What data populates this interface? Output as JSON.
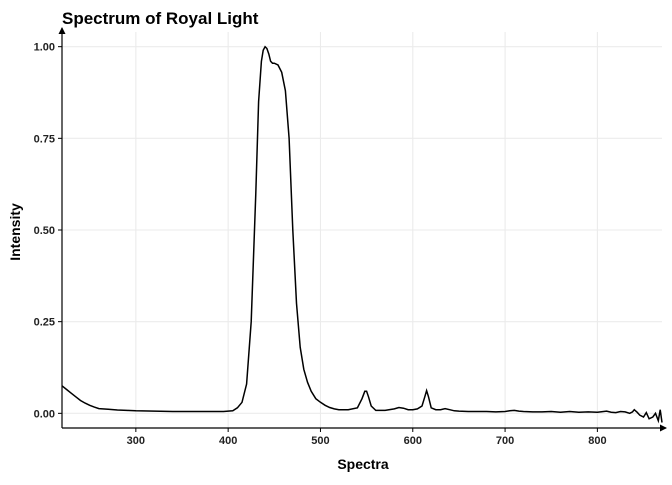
{
  "chart_data": {
    "type": "line",
    "title": "Spectrum of Royal Light",
    "xlabel": "Spectra",
    "ylabel": "Intensity",
    "xlim": [
      220,
      870
    ],
    "ylim": [
      -0.04,
      1.04
    ],
    "x_ticks": [
      300,
      400,
      500,
      600,
      700,
      800
    ],
    "y_ticks": [
      0.0,
      0.25,
      0.5,
      0.75,
      1.0
    ],
    "x_tick_labels": [
      "300",
      "400",
      "500",
      "600",
      "700",
      "800"
    ],
    "y_tick_labels": [
      "0.00",
      "0.25",
      "0.50",
      "0.75",
      "1.00"
    ],
    "grid": true,
    "legend": "none",
    "line_color": "#000000",
    "series": [
      {
        "x": [
          220,
          225,
          230,
          235,
          240,
          245,
          250,
          255,
          260,
          270,
          280,
          290,
          300,
          320,
          340,
          360,
          380,
          395,
          405,
          410,
          415,
          420,
          425,
          430,
          433,
          436,
          438,
          440,
          442,
          444,
          446,
          448,
          450,
          454,
          458,
          462,
          466,
          470,
          474,
          478,
          482,
          486,
          490,
          495,
          500,
          505,
          510,
          515,
          520,
          530,
          540,
          545,
          548,
          550,
          552,
          555,
          560,
          570,
          580,
          585,
          590,
          595,
          600,
          605,
          610,
          613,
          615,
          617,
          620,
          625,
          630,
          635,
          640,
          645,
          650,
          660,
          670,
          680,
          690,
          700,
          705,
          710,
          715,
          720,
          730,
          740,
          750,
          760,
          770,
          780,
          790,
          800,
          810,
          815,
          820,
          825,
          830,
          835,
          838,
          840,
          843,
          846,
          850,
          853,
          856,
          860,
          863,
          866,
          868,
          870
        ],
        "y": [
          0.075,
          0.065,
          0.055,
          0.045,
          0.035,
          0.028,
          0.022,
          0.017,
          0.013,
          0.011,
          0.009,
          0.008,
          0.007,
          0.006,
          0.005,
          0.005,
          0.005,
          0.005,
          0.007,
          0.015,
          0.03,
          0.08,
          0.25,
          0.6,
          0.85,
          0.96,
          0.99,
          1.0,
          0.995,
          0.98,
          0.96,
          0.955,
          0.955,
          0.95,
          0.93,
          0.88,
          0.75,
          0.5,
          0.3,
          0.18,
          0.12,
          0.085,
          0.06,
          0.04,
          0.03,
          0.022,
          0.016,
          0.012,
          0.01,
          0.01,
          0.015,
          0.04,
          0.06,
          0.06,
          0.045,
          0.02,
          0.008,
          0.008,
          0.012,
          0.016,
          0.014,
          0.01,
          0.01,
          0.012,
          0.02,
          0.045,
          0.062,
          0.045,
          0.015,
          0.01,
          0.01,
          0.013,
          0.01,
          0.007,
          0.006,
          0.005,
          0.005,
          0.005,
          0.004,
          0.005,
          0.007,
          0.008,
          0.006,
          0.005,
          0.004,
          0.004,
          0.005,
          0.003,
          0.005,
          0.003,
          0.004,
          0.003,
          0.006,
          0.003,
          0.002,
          0.005,
          0.004,
          0.0,
          0.004,
          0.01,
          0.003,
          -0.005,
          -0.01,
          0.002,
          -0.015,
          -0.01,
          0.0,
          -0.02,
          0.01,
          -0.025
        ]
      }
    ]
  }
}
